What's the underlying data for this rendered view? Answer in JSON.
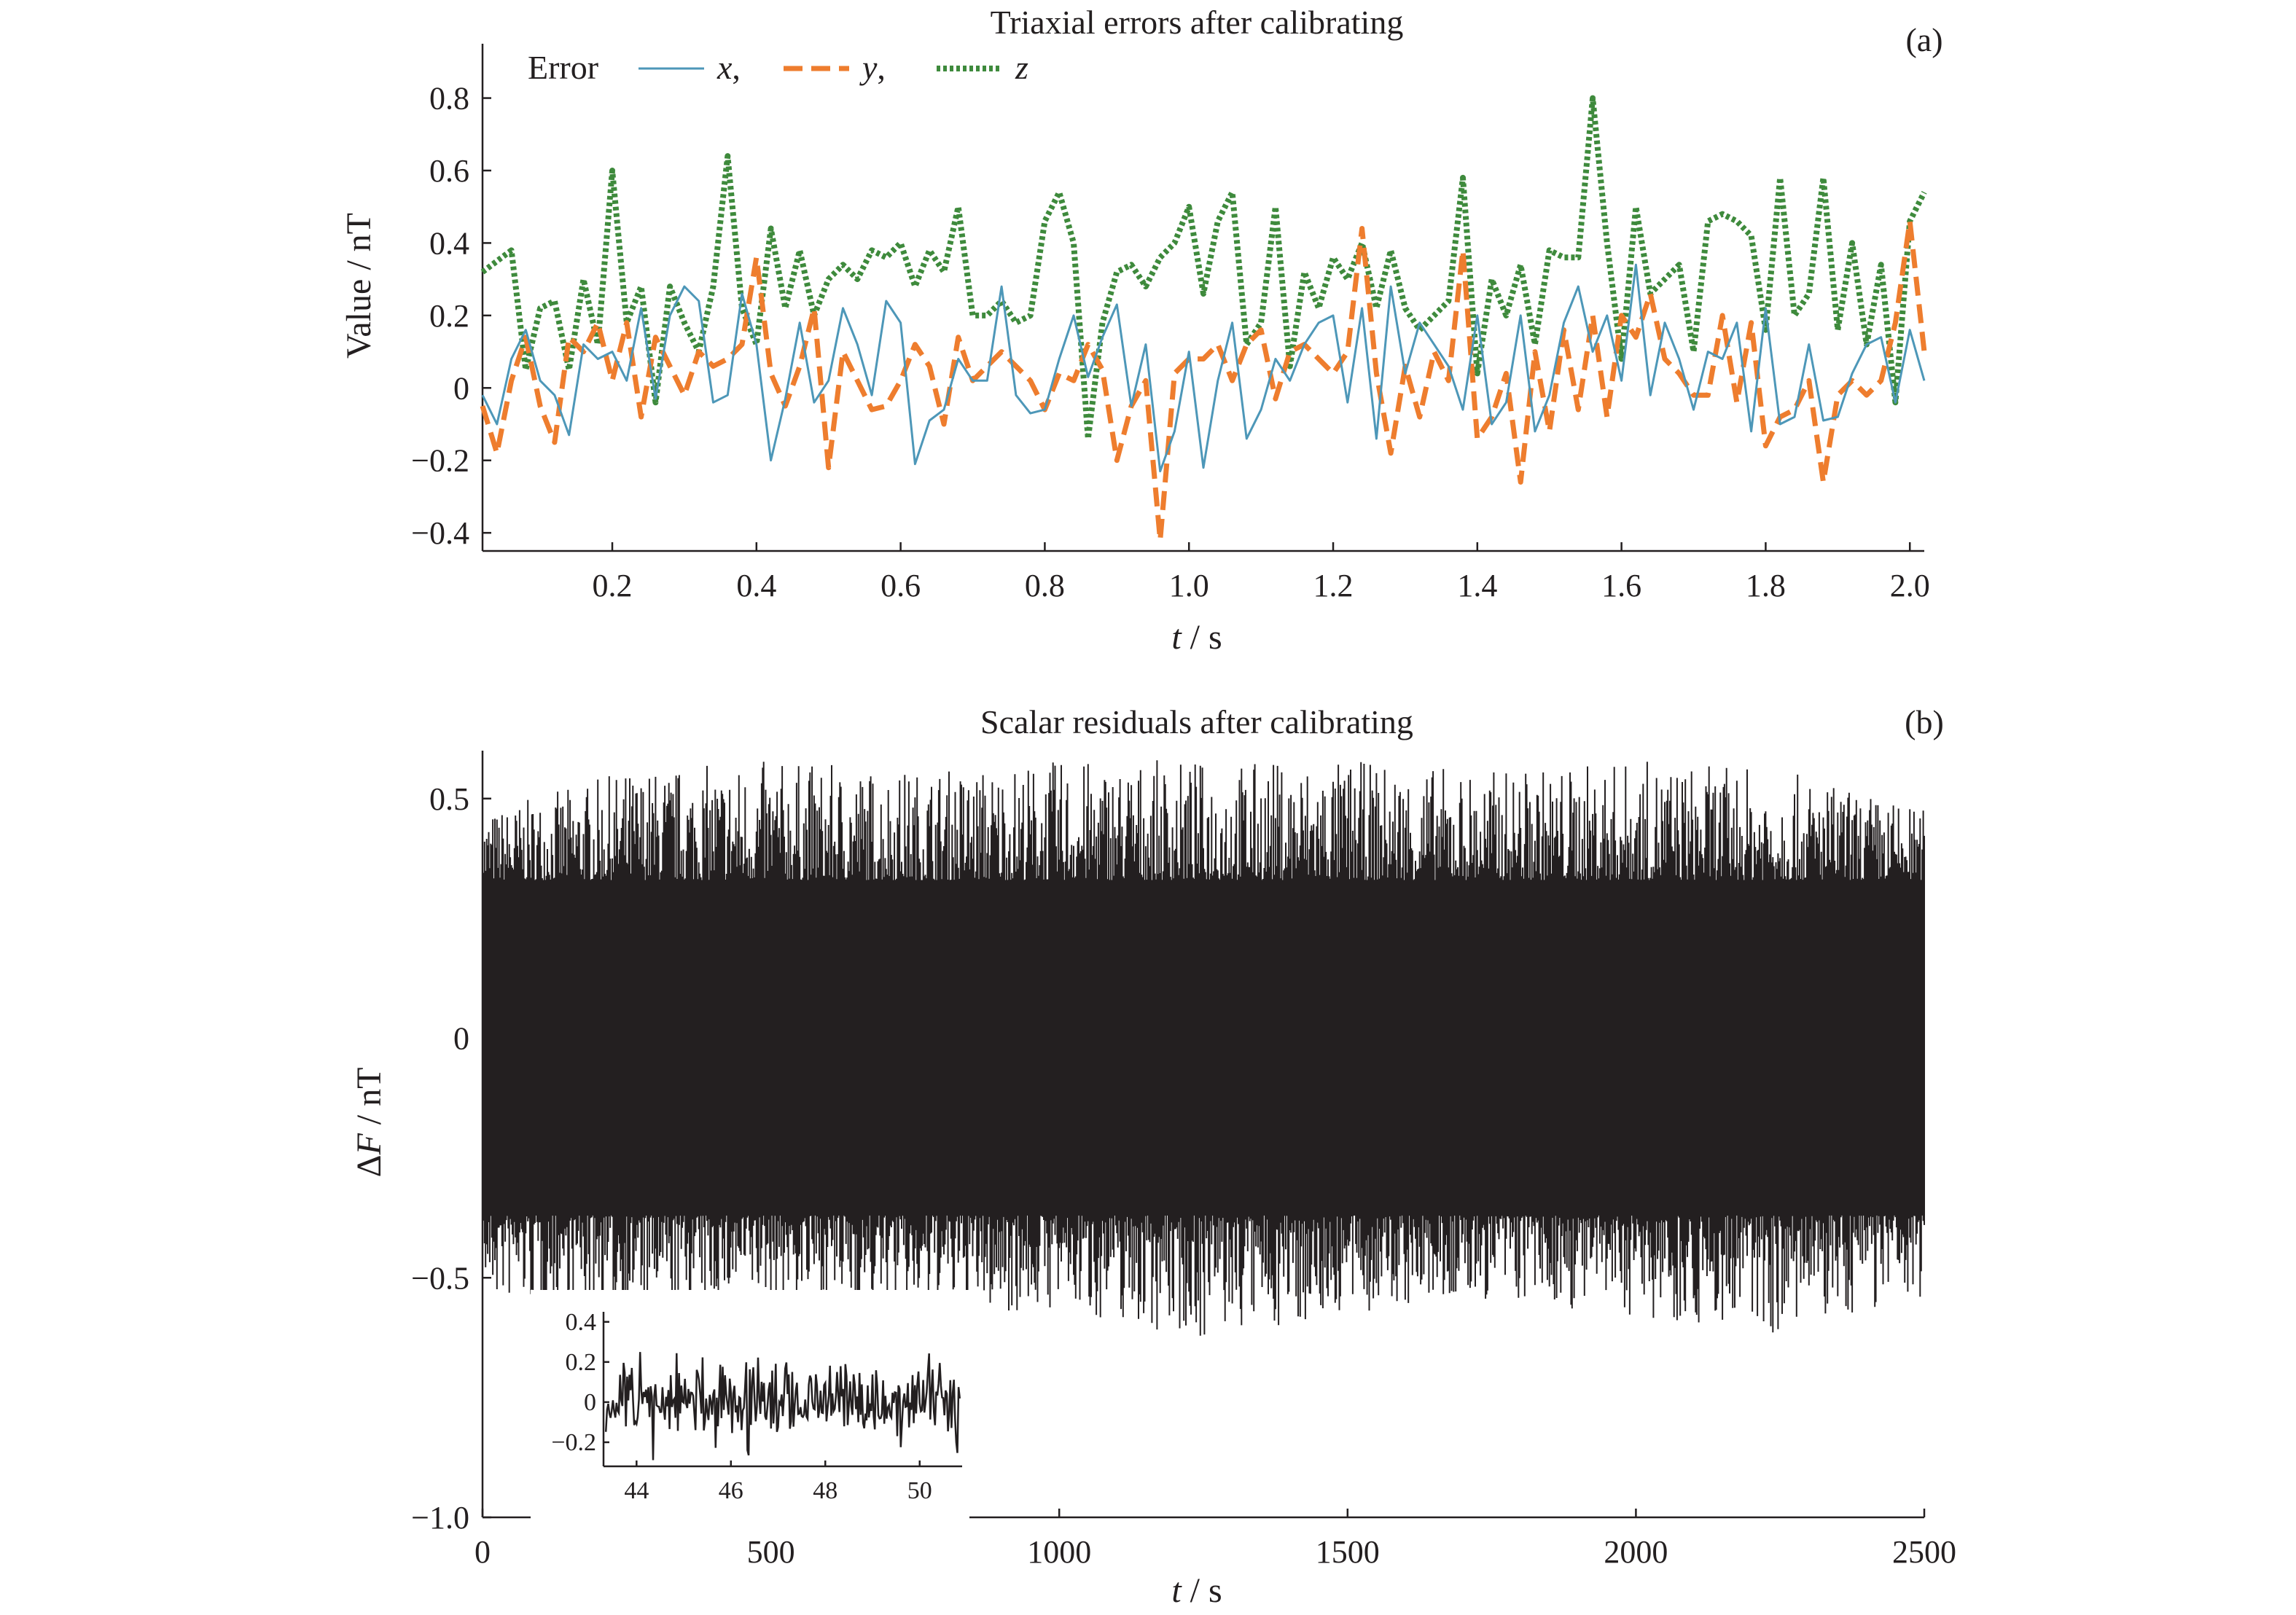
{
  "chart_data": [
    {
      "type": "line",
      "panel_label": "(a)",
      "title": "Triaxial errors after calibrating",
      "xlabel_var": "t",
      "xlabel_unit": " / s",
      "ylabel": "Value / nT",
      "xlim": [
        0.02,
        2.02
      ],
      "ylim": [
        -0.45,
        0.95
      ],
      "xticks": [
        0.2,
        0.4,
        0.6,
        0.8,
        1.0,
        1.2,
        1.4,
        1.6,
        1.8,
        2.0
      ],
      "xtick_labels": [
        "0.2",
        "0.4",
        "0.6",
        "0.8",
        "1.0",
        "1.2",
        "1.4",
        "1.6",
        "1.8",
        "2.0"
      ],
      "yticks": [
        -0.4,
        -0.2,
        0,
        0.2,
        0.4,
        0.6,
        0.8
      ],
      "ytick_labels": [
        "−0.4",
        "−0.2",
        "0",
        "0.2",
        "0.4",
        "0.6",
        "0.8"
      ],
      "legend": {
        "title": "Error",
        "placement": "top-left"
      },
      "x": [
        0.02,
        0.04,
        0.06,
        0.08,
        0.1,
        0.12,
        0.14,
        0.16,
        0.18,
        0.2,
        0.22,
        0.24,
        0.26,
        0.28,
        0.3,
        0.32,
        0.34,
        0.36,
        0.38,
        0.4,
        0.42,
        0.44,
        0.46,
        0.48,
        0.5,
        0.52,
        0.54,
        0.56,
        0.58,
        0.6,
        0.62,
        0.64,
        0.66,
        0.68,
        0.7,
        0.72,
        0.74,
        0.76,
        0.78,
        0.8,
        0.82,
        0.84,
        0.86,
        0.88,
        0.9,
        0.92,
        0.94,
        0.96,
        0.98,
        1.0,
        1.02,
        1.04,
        1.06,
        1.08,
        1.1,
        1.12,
        1.14,
        1.16,
        1.18,
        1.2,
        1.22,
        1.24,
        1.26,
        1.28,
        1.3,
        1.32,
        1.34,
        1.36,
        1.38,
        1.4,
        1.42,
        1.44,
        1.46,
        1.48,
        1.5,
        1.52,
        1.54,
        1.56,
        1.58,
        1.6,
        1.62,
        1.64,
        1.66,
        1.68,
        1.7,
        1.72,
        1.74,
        1.76,
        1.78,
        1.8,
        1.82,
        1.84,
        1.86,
        1.88,
        1.9,
        1.92,
        1.94,
        1.96,
        1.98,
        2.0,
        2.02
      ],
      "series": [
        {
          "name": "x,",
          "name_var": "x",
          "name_suffix": ",",
          "color": "#4d97b8",
          "style": "solid",
          "values": [
            -0.02,
            -0.1,
            0.08,
            0.16,
            0.02,
            -0.02,
            -0.13,
            0.12,
            0.08,
            0.1,
            0.02,
            0.22,
            -0.03,
            0.2,
            0.28,
            0.24,
            -0.04,
            -0.02,
            0.26,
            0.12,
            -0.2,
            -0.03,
            0.18,
            -0.04,
            0.02,
            0.22,
            0.12,
            -0.02,
            0.24,
            0.18,
            -0.21,
            -0.09,
            -0.06,
            0.08,
            0.02,
            0.02,
            0.28,
            -0.02,
            -0.07,
            -0.06,
            0.08,
            0.2,
            0.03,
            0.14,
            0.23,
            -0.05,
            0.12,
            -0.23,
            -0.12,
            0.1,
            -0.22,
            0.02,
            0.18,
            -0.14,
            -0.06,
            0.08,
            0.02,
            0.12,
            0.18,
            0.2,
            -0.04,
            0.22,
            -0.14,
            0.28,
            0.04,
            0.18,
            0.12,
            0.06,
            -0.06,
            0.2,
            -0.1,
            -0.04,
            0.2,
            -0.12,
            -0.02,
            0.18,
            0.28,
            0.1,
            0.2,
            0.02,
            0.34,
            -0.02,
            0.18,
            0.08,
            -0.06,
            0.1,
            0.08,
            0.18,
            -0.12,
            0.22,
            -0.1,
            -0.08,
            0.12,
            -0.09,
            -0.08,
            0.04,
            0.12,
            0.14,
            -0.04,
            0.16,
            0.02
          ]
        },
        {
          "name": "y,",
          "name_var": "y",
          "name_suffix": ",",
          "color": "#ee7d2e",
          "style": "dashed",
          "values": [
            -0.05,
            -0.18,
            0.02,
            0.14,
            -0.05,
            -0.15,
            0.14,
            0.1,
            0.18,
            0.02,
            0.18,
            -0.08,
            0.14,
            0.06,
            -0.02,
            0.1,
            0.06,
            0.08,
            0.12,
            0.36,
            0.04,
            -0.05,
            0.06,
            0.22,
            -0.22,
            0.1,
            0.02,
            -0.06,
            -0.05,
            0.02,
            0.12,
            0.06,
            -0.1,
            0.14,
            0.02,
            0.06,
            0.1,
            0.06,
            0.02,
            -0.06,
            0.04,
            0.02,
            0.12,
            0.05,
            -0.2,
            -0.05,
            0.02,
            -0.42,
            0.04,
            0.08,
            0.08,
            0.12,
            0.02,
            0.12,
            0.16,
            -0.03,
            0.1,
            0.12,
            0.08,
            0.04,
            0.1,
            0.44,
            0.04,
            -0.18,
            0.06,
            -0.08,
            0.1,
            0.02,
            0.38,
            -0.14,
            -0.08,
            0.04,
            -0.26,
            0.1,
            -0.12,
            0.16,
            -0.06,
            0.2,
            -0.08,
            0.2,
            0.14,
            0.26,
            0.08,
            0.04,
            -0.02,
            -0.02,
            0.2,
            -0.04,
            0.18,
            -0.16,
            -0.08,
            -0.06,
            0.02,
            -0.26,
            -0.02,
            0.02,
            -0.02,
            0.02,
            0.18,
            0.46,
            0.1
          ]
        },
        {
          "name": "z",
          "name_var": "z",
          "name_suffix": "",
          "color": "#3e8a3c",
          "style": "dotted",
          "values": [
            0.32,
            0.35,
            0.38,
            0.05,
            0.22,
            0.24,
            0.05,
            0.3,
            0.12,
            0.6,
            0.18,
            0.28,
            -0.04,
            0.28,
            0.18,
            0.1,
            0.28,
            0.64,
            0.22,
            0.12,
            0.44,
            0.22,
            0.38,
            0.2,
            0.3,
            0.34,
            0.3,
            0.38,
            0.36,
            0.4,
            0.28,
            0.38,
            0.32,
            0.5,
            0.2,
            0.2,
            0.24,
            0.18,
            0.2,
            0.46,
            0.54,
            0.4,
            -0.14,
            0.18,
            0.32,
            0.34,
            0.28,
            0.36,
            0.4,
            0.5,
            0.26,
            0.46,
            0.54,
            0.12,
            0.18,
            0.5,
            0.06,
            0.32,
            0.22,
            0.36,
            0.3,
            0.4,
            0.22,
            0.38,
            0.22,
            0.16,
            0.2,
            0.24,
            0.58,
            0.04,
            0.3,
            0.2,
            0.34,
            0.12,
            0.38,
            0.36,
            0.36,
            0.8,
            0.4,
            0.08,
            0.5,
            0.26,
            0.3,
            0.34,
            0.1,
            0.46,
            0.48,
            0.46,
            0.42,
            0.16,
            0.58,
            0.2,
            0.26,
            0.58,
            0.16,
            0.4,
            0.12,
            0.34,
            -0.04,
            0.46,
            0.54
          ]
        }
      ]
    },
    {
      "type": "line",
      "panel_label": "(b)",
      "title": "Scalar residuals after calibrating",
      "xlabel_var": "t",
      "xlabel_unit": " / s",
      "ylabel_prefix": "Δ",
      "ylabel_var": "F",
      "ylabel_unit": " / nT",
      "xlim": [
        0,
        2500
      ],
      "ylim": [
        -1.0,
        0.6
      ],
      "xticks": [
        0,
        500,
        1000,
        1500,
        2000,
        2500
      ],
      "xtick_labels": [
        "0",
        "500",
        "1000",
        "1500",
        "2000",
        "2500"
      ],
      "yticks": [
        -1.0,
        -0.5,
        0,
        0.5
      ],
      "ytick_labels": [
        "−1.0",
        "−0.5",
        "0",
        "0.5"
      ],
      "color": "#231f20",
      "envelope": {
        "x": [
          0,
          250,
          500,
          750,
          1000,
          1250,
          1500,
          1750,
          2000,
          2250,
          2500
        ],
        "upper": [
          0.47,
          0.56,
          0.58,
          0.56,
          0.58,
          0.58,
          0.58,
          0.56,
          0.58,
          0.56,
          0.48
        ],
        "lower": [
          -0.55,
          -0.58,
          -0.55,
          -0.58,
          -0.57,
          -0.63,
          -0.58,
          -0.55,
          -0.58,
          -0.62,
          -0.54
        ],
        "core_upper": 0.33,
        "core_lower": -0.37
      },
      "inset": {
        "xlim": [
          43.3,
          50.9
        ],
        "ylim": [
          -0.32,
          0.45
        ],
        "xticks": [
          44,
          46,
          48,
          50
        ],
        "xtick_labels": [
          "44",
          "46",
          "48",
          "50"
        ],
        "yticks": [
          -0.2,
          0,
          0.2,
          0.4
        ],
        "ytick_labels": [
          "−0.2",
          "0",
          "0.2",
          "0.4"
        ],
        "amplitude_range": [
          -0.3,
          0.4
        ]
      }
    }
  ]
}
